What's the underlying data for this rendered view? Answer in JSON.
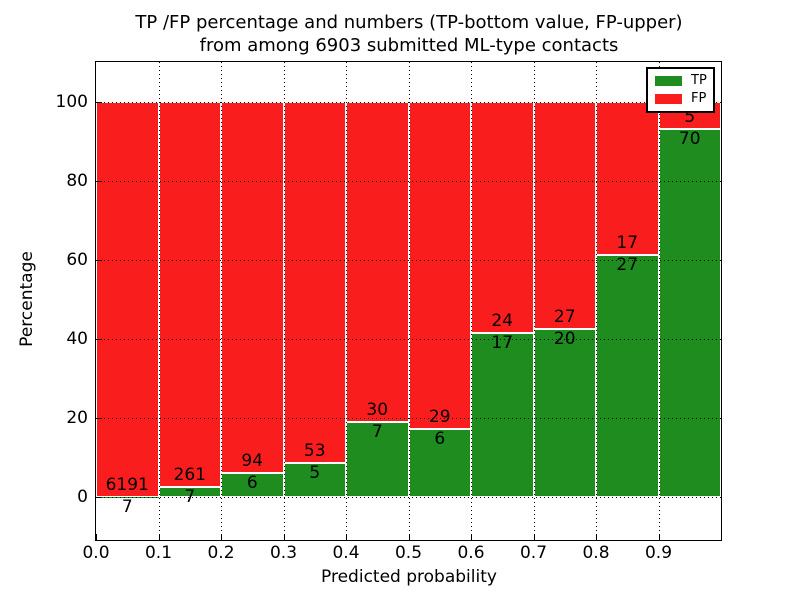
{
  "figure": {
    "title_line1": "TP /FP percentage and numbers (TP-bottom value, FP-upper)",
    "title_line2": "from among 6903 submitted ML-type contacts"
  },
  "chart_data": {
    "type": "bar",
    "stacked": true,
    "percent_stacked": true,
    "title": "TP /FP percentage and numbers (TP-bottom value, FP-upper) from among 6903 submitted ML-type contacts",
    "total_contacts": "6903",
    "xlabel": "Predicted probability",
    "ylabel": "Percentage",
    "xlim": [
      0.0,
      1.0
    ],
    "ylim": [
      -10.9,
      110.2
    ],
    "xticks": [
      "0.0",
      "0.1",
      "0.2",
      "0.3",
      "0.4",
      "0.5",
      "0.6",
      "0.7",
      "0.8",
      "0.9"
    ],
    "yticks": [
      0,
      20,
      40,
      60,
      80,
      100
    ],
    "grid": {
      "style": "dotted",
      "color": "#000000",
      "over_bars": true
    },
    "bar_edge_color": "#ffffff",
    "categories": [
      "0.0-0.1",
      "0.1-0.2",
      "0.2-0.3",
      "0.3-0.4",
      "0.4-0.5",
      "0.5-0.6",
      "0.6-0.7",
      "0.7-0.8",
      "0.8-0.9",
      "0.9-1.0"
    ],
    "series": [
      {
        "name": "TP",
        "color": "#1e8c1e",
        "counts": [
          7,
          7,
          6,
          5,
          7,
          6,
          17,
          20,
          27,
          70
        ]
      },
      {
        "name": "FP",
        "color": "#fa1d1d",
        "counts": [
          6191,
          261,
          94,
          53,
          30,
          29,
          24,
          27,
          17,
          5
        ]
      }
    ],
    "tp_percent_heights": [
      0.1,
      2.6,
      6.0,
      8.6,
      18.9,
      17.1,
      41.5,
      42.6,
      61.4,
      93.3
    ],
    "legend": {
      "position": "upper right",
      "entries": [
        {
          "label": "TP",
          "color": "#1e8c1e"
        },
        {
          "label": "FP",
          "color": "#fa1d1d"
        }
      ]
    }
  }
}
